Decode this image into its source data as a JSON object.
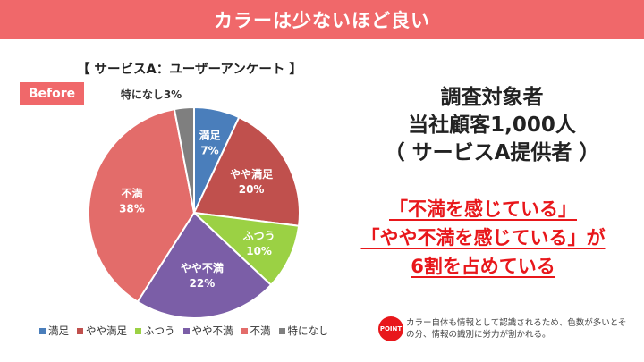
{
  "banner": {
    "title": "カラーは少ないほど良い"
  },
  "survey_title": "【 サービスA：ユーザーアンケート 】",
  "badge": {
    "label": "Before"
  },
  "info": {
    "lines": [
      "調査対象者",
      "当社顧客1,000人",
      "（ サービスA提供者 ）"
    ]
  },
  "highlight": {
    "lines": [
      "「不満を感じている」",
      "「やや不満を感じている」が",
      "6割を占めている"
    ]
  },
  "point": {
    "badge": "POINT",
    "note": "カラー自体も情報として認識されるため、色数が多いとその分、情報の識別に労力が割かれる。"
  },
  "chart_data": {
    "type": "pie",
    "categories": [
      "満足",
      "やや満足",
      "ふつう",
      "やや不満",
      "不満",
      "特になし"
    ],
    "values": [
      7,
      20,
      10,
      22,
      38,
      3
    ],
    "colors": [
      "#4a7ebb",
      "#c0504d",
      "#9bd144",
      "#7b5ea7",
      "#e36c6a",
      "#7f7f7f"
    ],
    "data_labels": [
      "満足\n7%",
      "やや満足\n20%",
      "ふつう\n10%",
      "やや不満\n22%",
      "不満\n38%",
      "特になし3%"
    ],
    "legend": "bottom"
  }
}
